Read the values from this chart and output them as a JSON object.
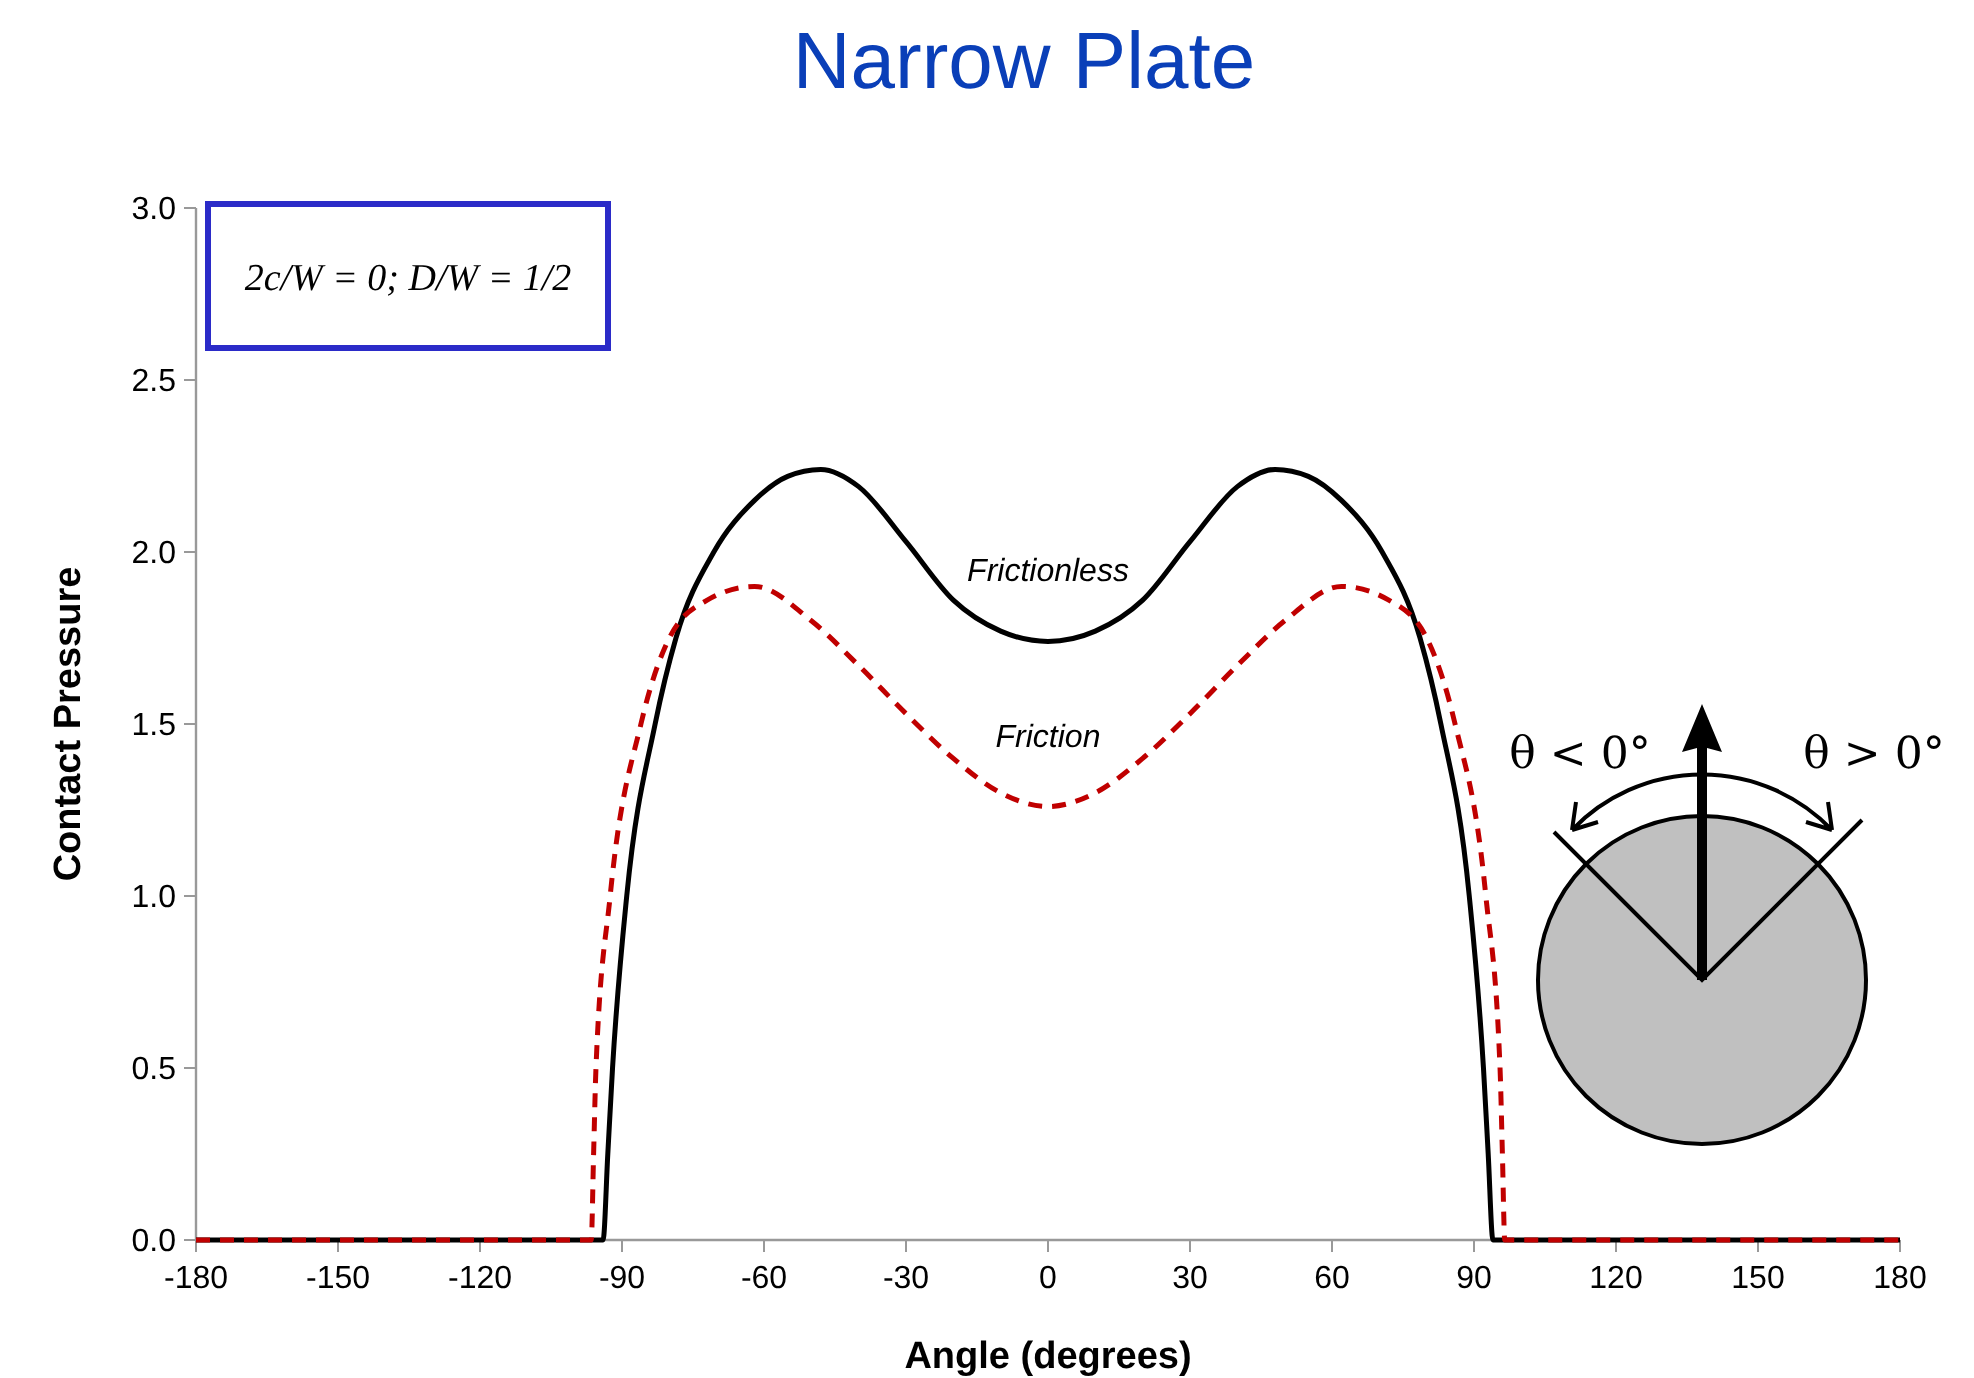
{
  "chart_data": {
    "type": "line",
    "title": "Narrow Plate",
    "xlabel": "Angle (degrees)",
    "ylabel": "Contact Pressure",
    "xlim": [
      -180,
      180
    ],
    "xticks": [
      -180,
      -150,
      -120,
      -90,
      -60,
      -30,
      0,
      30,
      60,
      90,
      120,
      150,
      180
    ],
    "ylim": [
      0,
      3
    ],
    "yticks": [
      {
        "value": 0,
        "label": "0.0"
      },
      {
        "value": 0.5,
        "label": "0.5"
      },
      {
        "value": 1,
        "label": "1.0"
      },
      {
        "value": 1.5,
        "label": "1.5"
      },
      {
        "value": 2,
        "label": "2.0"
      },
      {
        "value": 2.5,
        "label": "2.5"
      },
      {
        "value": 3,
        "label": "3.0"
      }
    ],
    "grid": false,
    "marker": "none",
    "series": [
      {
        "name": "Frictionless",
        "color": "#000000",
        "line_style": "solid",
        "x": [
          -180,
          -94,
          -93,
          -92,
          -89,
          -83,
          -78.6,
          -70.6,
          -62,
          -55,
          -48,
          -40,
          -30,
          -20,
          -10,
          0,
          10,
          20,
          30,
          40,
          48,
          55,
          62,
          70.6,
          78.6,
          83,
          89,
          92,
          93,
          94,
          180
        ],
        "values": [
          0,
          0,
          0.25,
          0.5,
          1.0,
          1.5,
          1.75,
          2.0,
          2.15,
          2.22,
          2.24,
          2.19,
          2.03,
          1.86,
          1.77,
          1.74,
          1.77,
          1.86,
          2.03,
          2.19,
          2.24,
          2.22,
          2.15,
          2.0,
          1.75,
          1.5,
          1.0,
          0.5,
          0.25,
          0,
          0
        ]
      },
      {
        "name": "Friction",
        "color": "#c00000",
        "line_style": "dashed",
        "x": [
          -180,
          -96.5,
          -96,
          -95.5,
          -92.5,
          -86,
          -80,
          -72,
          -62,
          -50,
          -40,
          -30,
          -20,
          -10,
          0,
          10,
          20,
          30,
          40,
          50,
          62,
          72,
          80,
          86,
          92.5,
          95.5,
          96,
          96.5,
          180
        ],
        "values": [
          0,
          0,
          0.25,
          0.5,
          1.0,
          1.5,
          1.75,
          1.86,
          1.9,
          1.8,
          1.67,
          1.53,
          1.4,
          1.3,
          1.26,
          1.3,
          1.4,
          1.53,
          1.67,
          1.8,
          1.9,
          1.86,
          1.75,
          1.5,
          1.0,
          0.5,
          0.25,
          0,
          0
        ]
      }
    ],
    "annotations": [
      "2c/W = 0; D/W = 1/2",
      "θ < 0°",
      "θ > 0°"
    ]
  }
}
